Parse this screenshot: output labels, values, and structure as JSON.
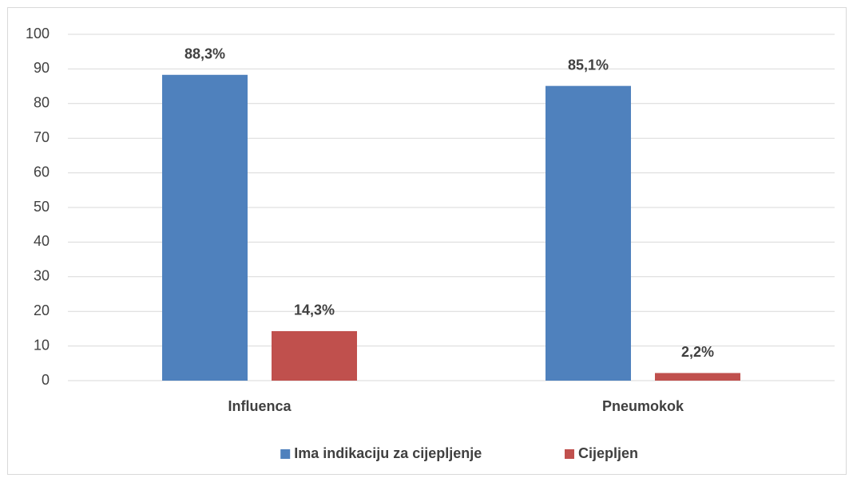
{
  "chart_data": {
    "type": "bar",
    "categories": [
      "Influenca",
      "Pneumokok"
    ],
    "series": [
      {
        "name": "Ima indikaciju za cijepljenje",
        "color": "#4f81bd",
        "values": [
          88.3,
          85.1
        ],
        "value_labels": [
          "88,3%",
          "85,1%"
        ]
      },
      {
        "name": "Cijepljen",
        "color": "#c0504d",
        "values": [
          14.3,
          2.2
        ],
        "value_labels": [
          "14,3%",
          "2,2%"
        ]
      }
    ],
    "ylim": [
      0,
      100
    ],
    "yticks": [
      0,
      10,
      20,
      30,
      40,
      50,
      60,
      70,
      80,
      90,
      100
    ],
    "grid": true,
    "legend": "bottom"
  }
}
